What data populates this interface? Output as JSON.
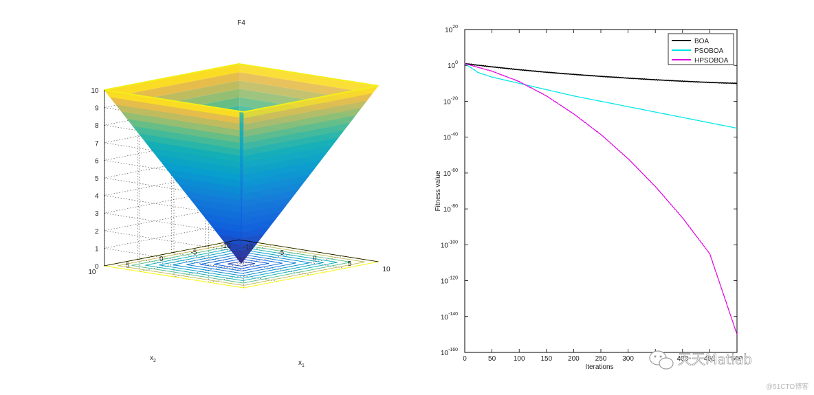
{
  "chart_data": [
    {
      "type": "surface3d",
      "title": "F4",
      "xlabel": "x",
      "xlabel_sub": "1",
      "ylabel": "x",
      "ylabel_sub": "2",
      "zlabel": "",
      "xlim": [
        -10,
        10
      ],
      "ylim": [
        -10,
        10
      ],
      "zlim": [
        0,
        10
      ],
      "x_ticks": [
        "-10",
        "-5",
        "0",
        "5",
        "10"
      ],
      "y_ticks": [
        "-10",
        "-5",
        "0",
        "5",
        "10"
      ],
      "z_ticks": [
        "0",
        "1",
        "2",
        "3",
        "4",
        "5",
        "6",
        "7",
        "8",
        "9",
        "10"
      ],
      "function": "max(|x1|, |x2|)",
      "contour_levels": [
        1,
        2,
        3,
        4,
        5,
        6,
        7,
        8,
        9,
        10
      ],
      "grid": true,
      "colormap": "parula"
    },
    {
      "type": "line",
      "title": "",
      "xlabel": "Iterations",
      "ylabel": "Fitness value",
      "yscale": "log",
      "xlim": [
        0,
        500
      ],
      "ylim_exponent": [
        -160,
        20
      ],
      "x_ticks": [
        "0",
        "50",
        "100",
        "150",
        "200",
        "250",
        "300",
        "350",
        "400",
        "450",
        "500"
      ],
      "y_tick_base": "10",
      "y_tick_exponents": [
        "20",
        "0",
        "-20",
        "-40",
        "-60",
        "-80",
        "-100",
        "-120",
        "-140",
        "-160"
      ],
      "legend_position": "top-right",
      "series": [
        {
          "name": "BOA",
          "color": "#000000",
          "x": [
            0,
            50,
            100,
            150,
            200,
            250,
            300,
            350,
            400,
            450,
            500
          ],
          "log10_y": [
            1,
            -0.8,
            -2.4,
            -3.8,
            -5.0,
            -6.1,
            -7.1,
            -8.0,
            -8.8,
            -9.5,
            -10
          ]
        },
        {
          "name": "PSOBOA",
          "color": "#00e5e5",
          "x": [
            0,
            25,
            50,
            100,
            150,
            200,
            250,
            300,
            350,
            400,
            450,
            500
          ],
          "log10_y": [
            1,
            -4,
            -6.5,
            -10,
            -13.5,
            -17,
            -20,
            -23,
            -26,
            -29,
            -32,
            -35
          ]
        },
        {
          "name": "HPSOBOA",
          "color": "#e000e0",
          "x": [
            0,
            50,
            100,
            150,
            200,
            250,
            300,
            350,
            400,
            450,
            500
          ],
          "log10_y": [
            1,
            -3.2,
            -9,
            -17,
            -27,
            -38.5,
            -52,
            -67.5,
            -85,
            -105,
            -150
          ]
        }
      ]
    }
  ],
  "watermark": {
    "text": "天天Matlab",
    "sub": "@51CTO博客",
    "icon": "wechat-icon"
  }
}
